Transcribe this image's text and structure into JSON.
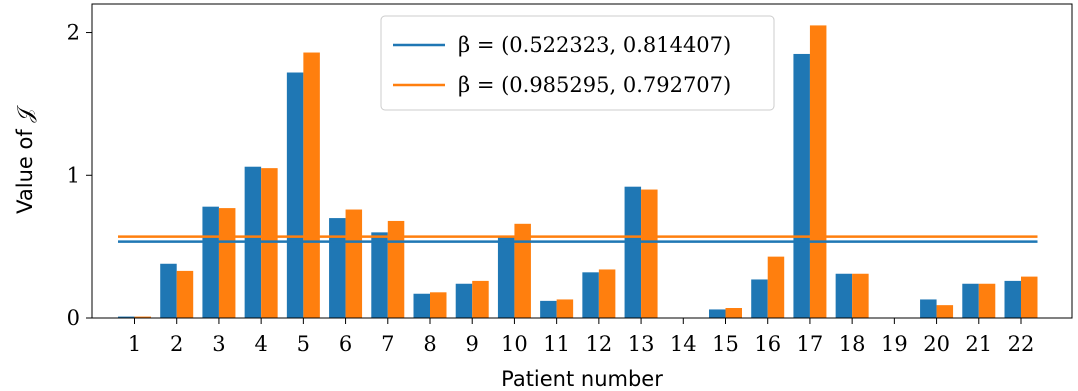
{
  "chart_data": {
    "type": "bar",
    "xlabel": "Patient number",
    "ylabel": "Value of 𝒥",
    "ylim": [
      0,
      2.2
    ],
    "yticks": [
      "0",
      "1",
      "2"
    ],
    "categories": [
      "1",
      "2",
      "3",
      "4",
      "5",
      "6",
      "7",
      "8",
      "9",
      "10",
      "11",
      "12",
      "13",
      "14",
      "15",
      "16",
      "17",
      "18",
      "19",
      "20",
      "21",
      "22"
    ],
    "series": [
      {
        "name": "β = (0.522323, 0.814407)",
        "color": "#1f77b4",
        "values": [
          0.01,
          0.38,
          0.78,
          1.06,
          1.72,
          0.7,
          0.6,
          0.17,
          0.24,
          0.57,
          0.12,
          0.32,
          0.92,
          0.0,
          0.06,
          0.27,
          1.85,
          0.31,
          0.0,
          0.13,
          0.24,
          0.26
        ],
        "hline": 0.535
      },
      {
        "name": "β = (0.985295, 0.792707)",
        "color": "#ff7f0e",
        "values": [
          0.01,
          0.33,
          0.77,
          1.05,
          1.86,
          0.76,
          0.68,
          0.18,
          0.26,
          0.66,
          0.13,
          0.34,
          0.9,
          0.0,
          0.07,
          0.43,
          2.05,
          0.31,
          0.0,
          0.09,
          0.24,
          0.29
        ],
        "hline": 0.57
      }
    ],
    "legend_position": "top-center",
    "grid": false
  }
}
